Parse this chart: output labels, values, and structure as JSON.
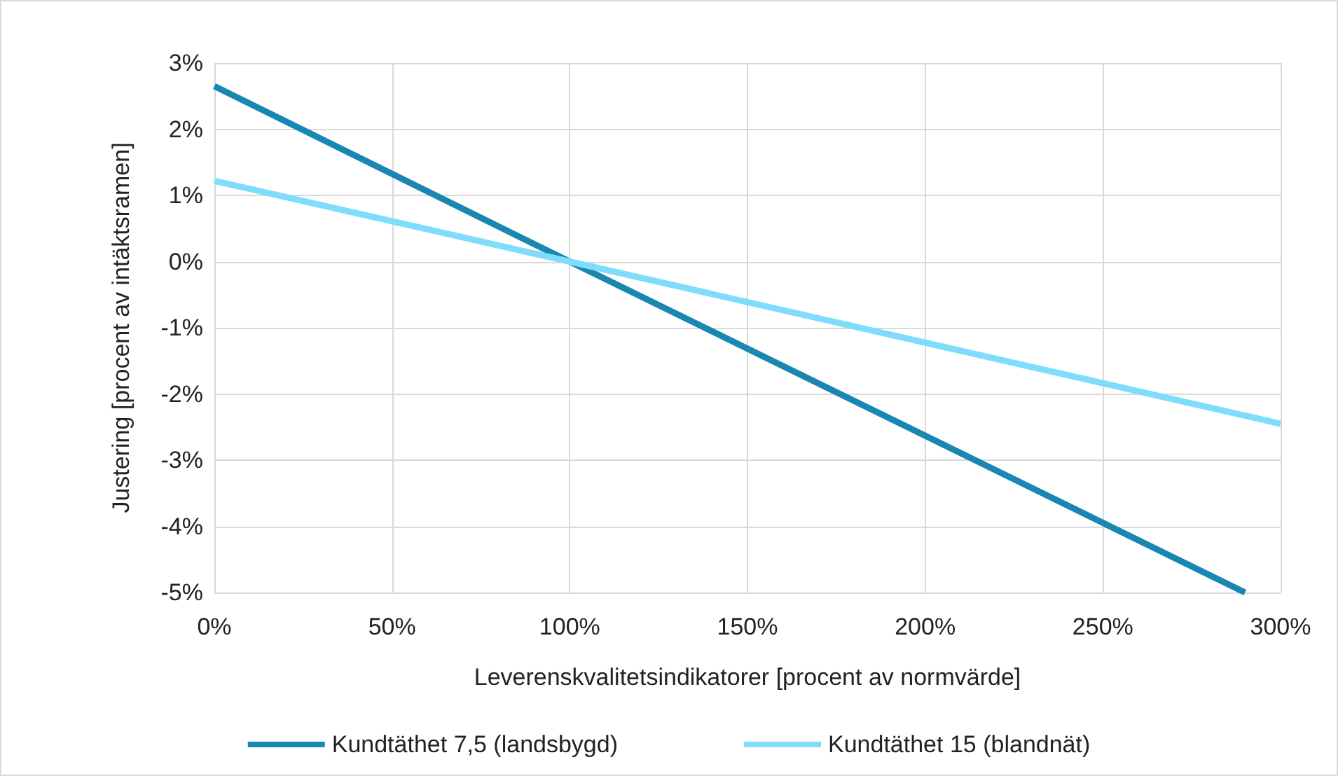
{
  "chart_data": {
    "type": "line",
    "xlabel": "Leverenskvalitetsindikatorer [procent av normvärde]",
    "ylabel": "Justering [procent av intäktsramen]",
    "series": [
      {
        "name": "Kundtäthet 7,5 (landsbygd)",
        "color": "#1a87b2",
        "x": [
          0,
          100,
          290
        ],
        "values": [
          2.65,
          0,
          -5
        ]
      },
      {
        "name": "Kundtäthet 15 (blandnät)",
        "color": "#7fdcfa",
        "x": [
          0,
          100,
          300
        ],
        "values": [
          1.22,
          0,
          -2.45
        ]
      }
    ],
    "xlim": [
      0,
      300
    ],
    "xticks": [
      {
        "value": 0,
        "label": "0%"
      },
      {
        "value": 50,
        "label": "50%"
      },
      {
        "value": 100,
        "label": "100%"
      },
      {
        "value": 150,
        "label": "150%"
      },
      {
        "value": 200,
        "label": "200%"
      },
      {
        "value": 250,
        "label": "250%"
      },
      {
        "value": 300,
        "label": "300%"
      }
    ],
    "ylim": [
      -5,
      3
    ],
    "yticks": [
      {
        "value": -5,
        "label": "-5%"
      },
      {
        "value": -4,
        "label": "-4%"
      },
      {
        "value": -3,
        "label": "-3%"
      },
      {
        "value": -2,
        "label": "-2%"
      },
      {
        "value": -1,
        "label": "-1%"
      },
      {
        "value": 0,
        "label": "0%"
      },
      {
        "value": 1,
        "label": "1%"
      },
      {
        "value": 2,
        "label": "2%"
      },
      {
        "value": 3,
        "label": "3%"
      }
    ],
    "grid": true,
    "legend": "bottom",
    "marker": "none",
    "line_style": "solid"
  }
}
